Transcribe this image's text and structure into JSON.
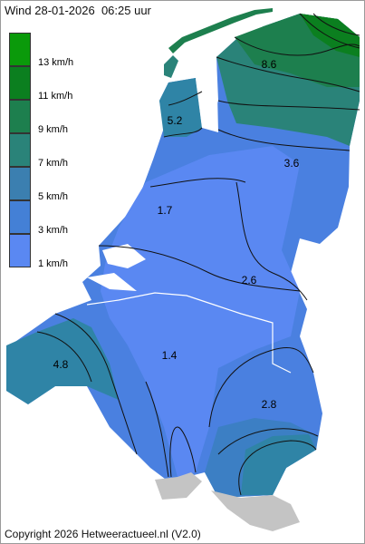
{
  "map": {
    "title": "Wind 28-01-2026  06:25 uur",
    "copyright": "Copyright 2026 Hetweeractueel.nl (V2.0)"
  },
  "legend": [
    {
      "label": "13 km/h",
      "color": "#0a9a0a"
    },
    {
      "label": "11 km/h",
      "color": "#0b7f1f"
    },
    {
      "label": "9 km/h",
      "color": "#1d7f4e"
    },
    {
      "label": "7 km/h",
      "color": "#2a8379"
    },
    {
      "label": "5 km/h",
      "color": "#3b7fb0"
    },
    {
      "label": "3 km/h",
      "color": "#4480d6"
    },
    {
      "label": "1 km/h",
      "color": "#5a88f2"
    }
  ],
  "contour_labels": [
    "8.6",
    "5.2",
    "3.6",
    "1.7",
    "2.6",
    "1.4",
    "4.8",
    "2.8"
  ]
}
